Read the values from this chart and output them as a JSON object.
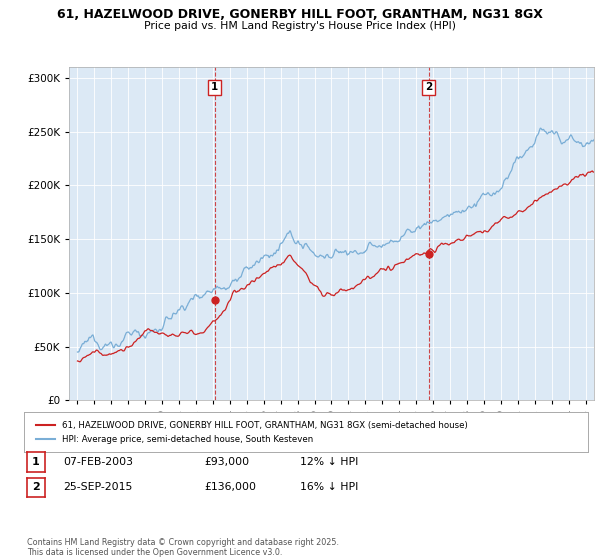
{
  "title_line1": "61, HAZELWOOD DRIVE, GONERBY HILL FOOT, GRANTHAM, NG31 8GX",
  "title_line2": "Price paid vs. HM Land Registry's House Price Index (HPI)",
  "ytick_vals": [
    0,
    50000,
    100000,
    150000,
    200000,
    250000,
    300000
  ],
  "ylim": [
    0,
    310000
  ],
  "bg_color": "#dce9f5",
  "bg_color_between": "#e8f0f8",
  "line1_color": "#cc2222",
  "line2_color": "#7aaed6",
  "marker1_date": 2003.1,
  "marker2_date": 2015.73,
  "legend_line1": "61, HAZELWOOD DRIVE, GONERBY HILL FOOT, GRANTHAM, NG31 8GX (semi-detached house)",
  "legend_line2": "HPI: Average price, semi-detached house, South Kesteven",
  "table_row1": [
    "1",
    "07-FEB-2003",
    "£93,000",
    "12% ↓ HPI"
  ],
  "table_row2": [
    "2",
    "25-SEP-2015",
    "£136,000",
    "16% ↓ HPI"
  ],
  "footer": "Contains HM Land Registry data © Crown copyright and database right 2025.\nThis data is licensed under the Open Government Licence v3.0.",
  "xmin": 1994.5,
  "xmax": 2025.5,
  "sale1_price": 93000,
  "sale2_price": 136000
}
